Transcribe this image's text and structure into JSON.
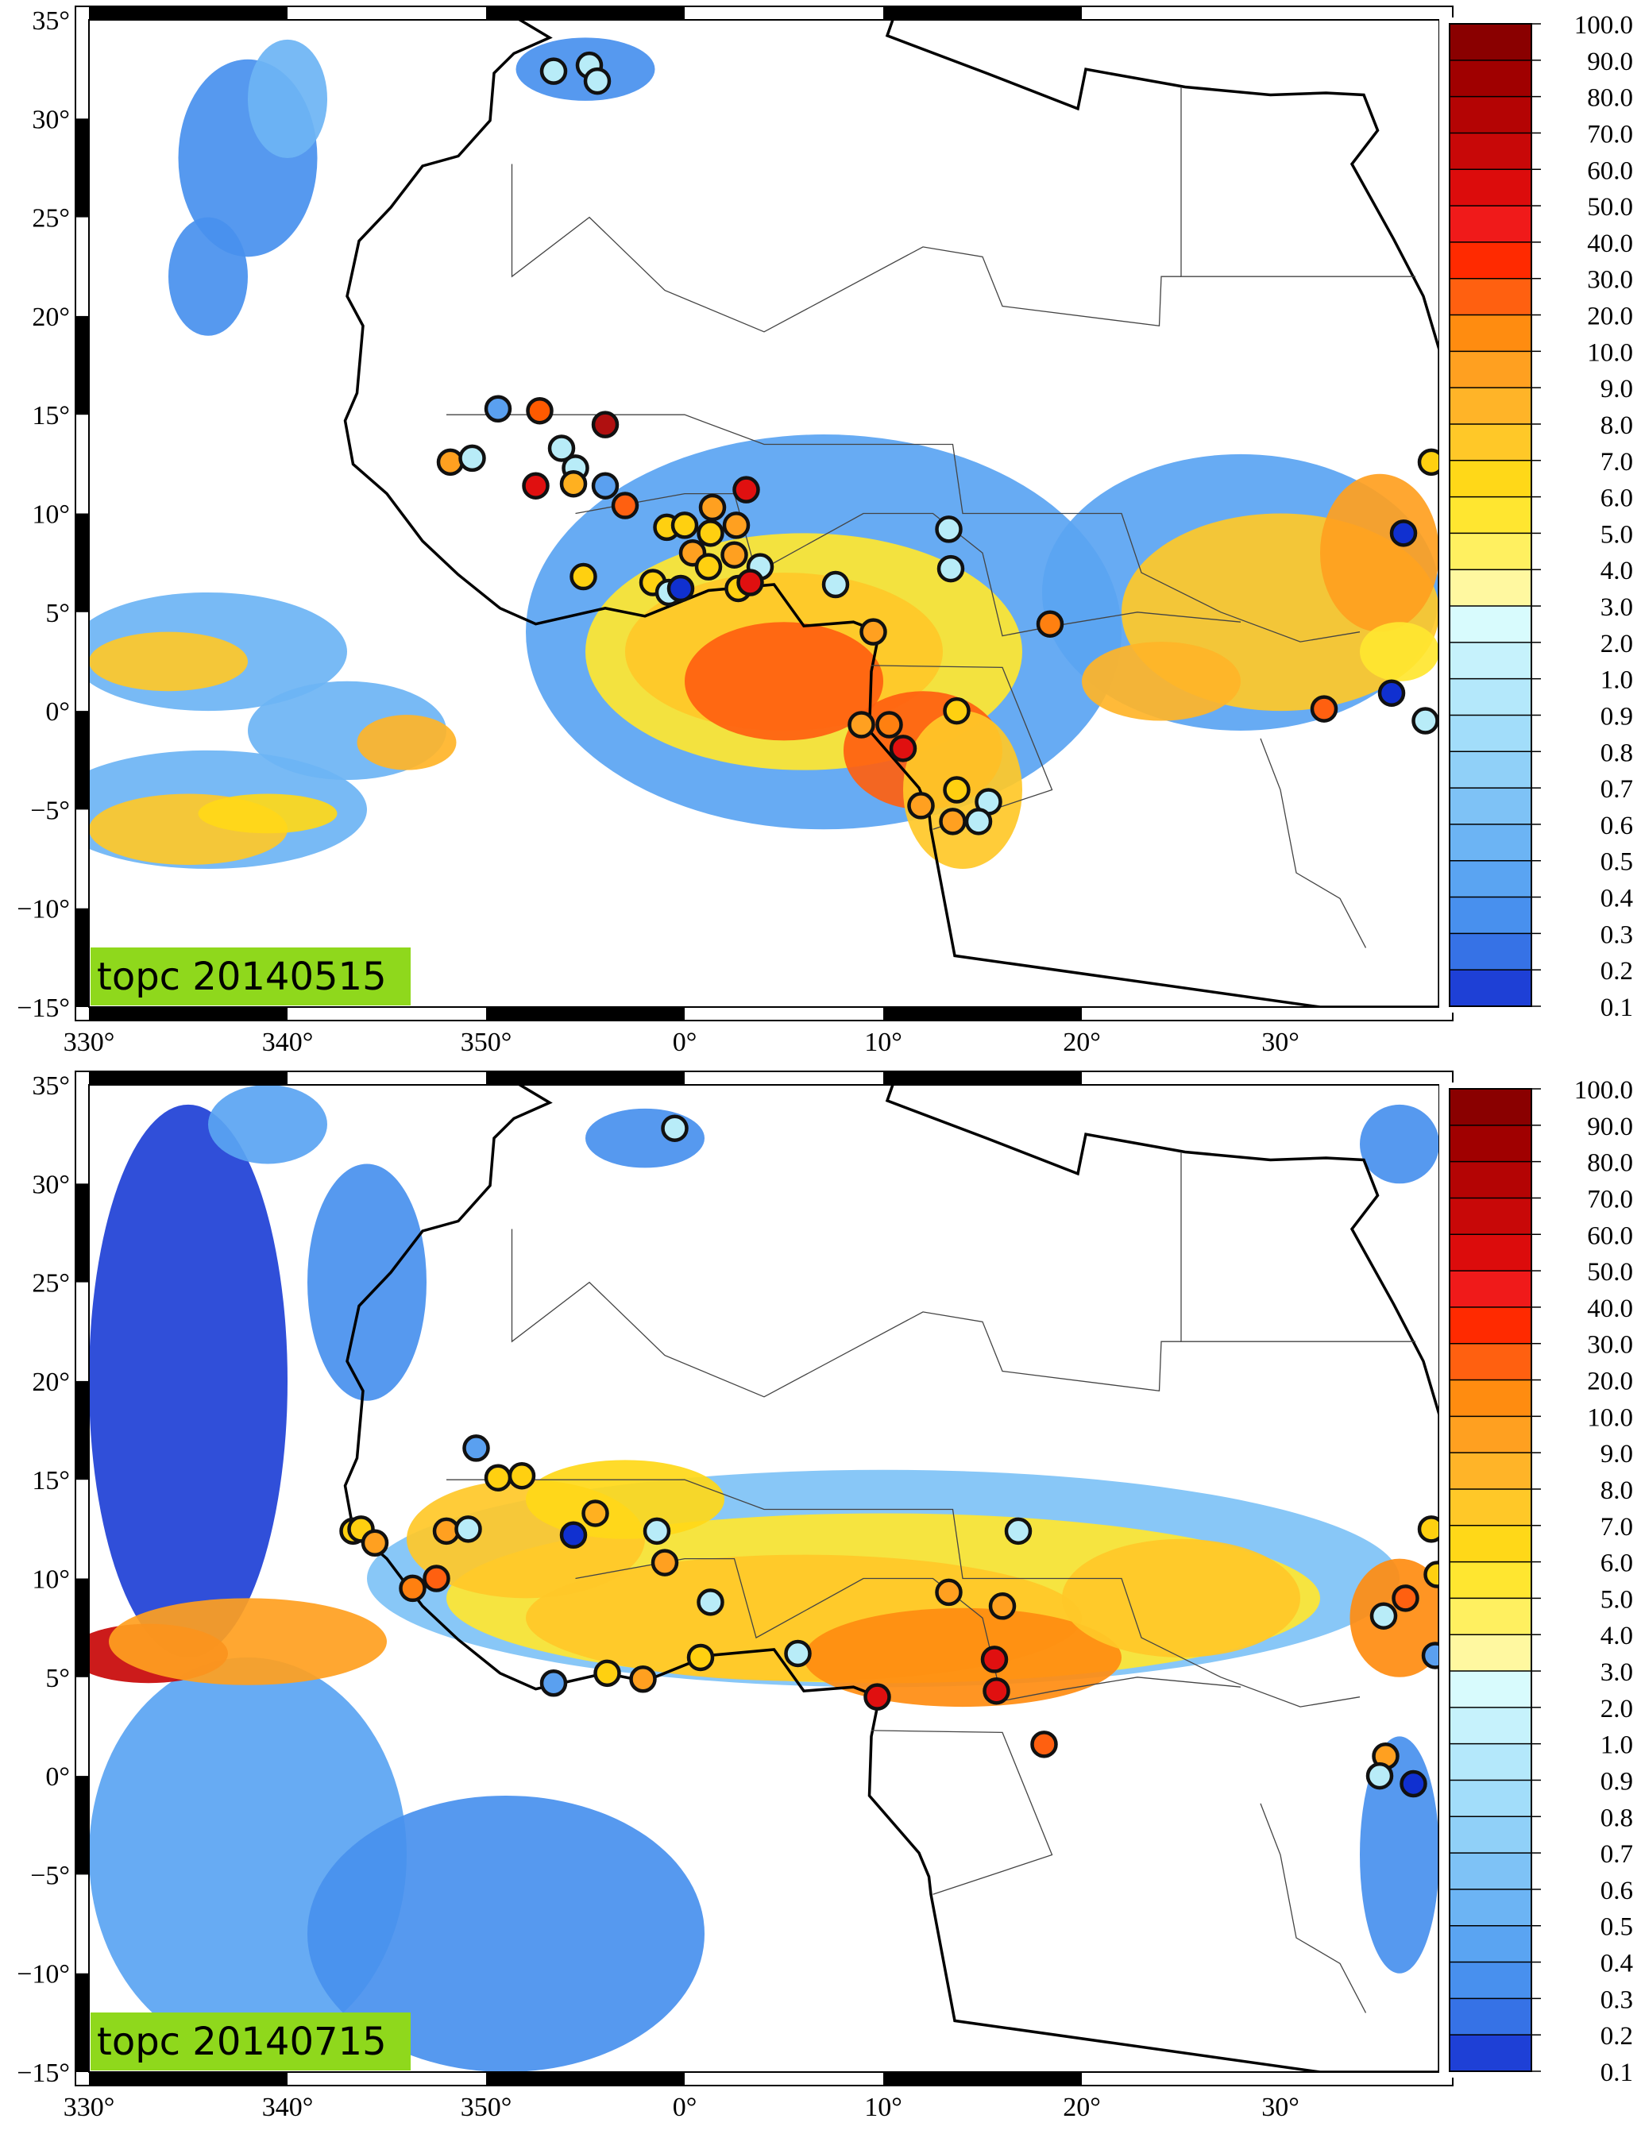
{
  "panels": [
    {
      "id": "top",
      "label": "topc 20140515",
      "y_ticks": [
        "35°",
        "30°",
        "25°",
        "20°",
        "15°",
        "10°",
        "5°",
        "0°",
        "−5°",
        "−10°",
        "−15°"
      ],
      "x_ticks": [
        "330°",
        "340°",
        "350°",
        "0°",
        "10°",
        "20°",
        "30°"
      ],
      "stations": [
        {
          "lon": -6.6,
          "lat": 32.4,
          "c": "#b8ecf8"
        },
        {
          "lon": -4.8,
          "lat": 32.7,
          "c": "#b8ecf8"
        },
        {
          "lon": -4.4,
          "lat": 31.9,
          "c": "#b8ecf8"
        },
        {
          "lon": -9.4,
          "lat": 15.3,
          "c": "#5aa0f0"
        },
        {
          "lon": -7.3,
          "lat": 15.2,
          "c": "#ff5a00"
        },
        {
          "lon": -4.0,
          "lat": 14.5,
          "c": "#b01010"
        },
        {
          "lon": -11.8,
          "lat": 12.6,
          "c": "#ffa020"
        },
        {
          "lon": -10.7,
          "lat": 12.8,
          "c": "#b8ecf8"
        },
        {
          "lon": -6.2,
          "lat": 13.3,
          "c": "#b8ecf8"
        },
        {
          "lon": -5.5,
          "lat": 12.3,
          "c": "#b8ecf8"
        },
        {
          "lon": -7.5,
          "lat": 11.4,
          "c": "#e01010"
        },
        {
          "lon": -5.6,
          "lat": 11.5,
          "c": "#ffb020"
        },
        {
          "lon": -4.0,
          "lat": 11.4,
          "c": "#5aa0f0"
        },
        {
          "lon": -3.0,
          "lat": 10.4,
          "c": "#ff6010"
        },
        {
          "lon": -5.1,
          "lat": 6.8,
          "c": "#ffd010"
        },
        {
          "lon": -0.9,
          "lat": 9.3,
          "c": "#ffd010"
        },
        {
          "lon": 0.0,
          "lat": 9.4,
          "c": "#ffd010"
        },
        {
          "lon": 1.3,
          "lat": 9.0,
          "c": "#ffd010"
        },
        {
          "lon": 1.4,
          "lat": 10.3,
          "c": "#ffa020"
        },
        {
          "lon": 2.6,
          "lat": 9.4,
          "c": "#ffa020"
        },
        {
          "lon": 3.1,
          "lat": 11.2,
          "c": "#e01010"
        },
        {
          "lon": 0.4,
          "lat": 8.0,
          "c": "#ffa020"
        },
        {
          "lon": 1.2,
          "lat": 7.3,
          "c": "#ffd010"
        },
        {
          "lon": 2.5,
          "lat": 7.9,
          "c": "#ffa020"
        },
        {
          "lon": 3.8,
          "lat": 7.3,
          "c": "#b8ecf8"
        },
        {
          "lon": -1.6,
          "lat": 6.5,
          "c": "#ffd010"
        },
        {
          "lon": -0.8,
          "lat": 6.0,
          "c": "#b8ecf8"
        },
        {
          "lon": -0.2,
          "lat": 6.2,
          "c": "#1030d0"
        },
        {
          "lon": 2.7,
          "lat": 6.2,
          "c": "#ffd010"
        },
        {
          "lon": 3.3,
          "lat": 6.5,
          "c": "#e01010"
        },
        {
          "lon": 7.6,
          "lat": 6.4,
          "c": "#b8ecf8"
        },
        {
          "lon": 13.3,
          "lat": 9.2,
          "c": "#b8ecf8"
        },
        {
          "lon": 13.4,
          "lat": 7.2,
          "c": "#b8ecf8"
        },
        {
          "lon": 9.5,
          "lat": 4.0,
          "c": "#ffa020"
        },
        {
          "lon": 18.4,
          "lat": 4.4,
          "c": "#ff8010"
        },
        {
          "lon": 13.7,
          "lat": 0.0,
          "c": "#ffd010"
        },
        {
          "lon": 8.9,
          "lat": -0.7,
          "c": "#ffa020"
        },
        {
          "lon": 10.3,
          "lat": -0.7,
          "c": "#ff8010"
        },
        {
          "lon": 11.0,
          "lat": -1.9,
          "c": "#e01010"
        },
        {
          "lon": 11.9,
          "lat": -4.8,
          "c": "#ffa020"
        },
        {
          "lon": 13.7,
          "lat": -4.0,
          "c": "#ffd010"
        },
        {
          "lon": 13.5,
          "lat": -5.6,
          "c": "#ffa020"
        },
        {
          "lon": 15.3,
          "lat": -4.6,
          "c": "#b8ecf8"
        },
        {
          "lon": 14.8,
          "lat": -5.6,
          "c": "#b8ecf8"
        },
        {
          "lon": 37.6,
          "lat": 12.6,
          "c": "#ffd010"
        },
        {
          "lon": 36.2,
          "lat": 9.0,
          "c": "#1030d0"
        },
        {
          "lon": 32.2,
          "lat": 0.1,
          "c": "#ff6010"
        },
        {
          "lon": 35.6,
          "lat": 0.9,
          "c": "#1030d0"
        },
        {
          "lon": 37.3,
          "lat": -0.5,
          "c": "#b8ecf8"
        }
      ]
    },
    {
      "id": "bottom",
      "label": "topc 20140715",
      "y_ticks": [
        "35°",
        "30°",
        "25°",
        "20°",
        "15°",
        "10°",
        "5°",
        "0°",
        "−5°",
        "−10°",
        "−15°"
      ],
      "x_ticks": [
        "330°",
        "340°",
        "350°",
        "0°",
        "10°",
        "20°",
        "30°"
      ],
      "stations": [
        {
          "lon": -0.5,
          "lat": 32.8,
          "c": "#b8ecf8"
        },
        {
          "lon": -10.5,
          "lat": 16.6,
          "c": "#5aa0f0"
        },
        {
          "lon": -9.4,
          "lat": 15.1,
          "c": "#ffd010"
        },
        {
          "lon": -8.2,
          "lat": 15.2,
          "c": "#ffd010"
        },
        {
          "lon": -16.7,
          "lat": 12.4,
          "c": "#ffd010"
        },
        {
          "lon": -16.3,
          "lat": 12.5,
          "c": "#ffd010"
        },
        {
          "lon": -15.6,
          "lat": 11.8,
          "c": "#ffa020"
        },
        {
          "lon": -12.0,
          "lat": 12.4,
          "c": "#ffa020"
        },
        {
          "lon": -10.9,
          "lat": 12.5,
          "c": "#b8ecf8"
        },
        {
          "lon": -5.6,
          "lat": 12.2,
          "c": "#1030d0"
        },
        {
          "lon": -4.5,
          "lat": 13.3,
          "c": "#ffb020"
        },
        {
          "lon": -13.7,
          "lat": 9.5,
          "c": "#ff8010"
        },
        {
          "lon": -12.5,
          "lat": 10.0,
          "c": "#ff6010"
        },
        {
          "lon": -1.4,
          "lat": 12.4,
          "c": "#b8ecf8"
        },
        {
          "lon": -1.0,
          "lat": 10.8,
          "c": "#ffa020"
        },
        {
          "lon": 1.3,
          "lat": 8.8,
          "c": "#b8ecf8"
        },
        {
          "lon": 0.8,
          "lat": 6.0,
          "c": "#ffd010"
        },
        {
          "lon": -3.9,
          "lat": 5.2,
          "c": "#ffd010"
        },
        {
          "lon": -2.1,
          "lat": 4.9,
          "c": "#ffa020"
        },
        {
          "lon": -6.6,
          "lat": 4.7,
          "c": "#5aa0f0"
        },
        {
          "lon": 5.7,
          "lat": 6.2,
          "c": "#b8ecf8"
        },
        {
          "lon": 9.7,
          "lat": 4.0,
          "c": "#e01010"
        },
        {
          "lon": 13.3,
          "lat": 9.3,
          "c": "#ffa020"
        },
        {
          "lon": 16.8,
          "lat": 12.4,
          "c": "#b8ecf8"
        },
        {
          "lon": 16.0,
          "lat": 8.6,
          "c": "#ffa020"
        },
        {
          "lon": 15.6,
          "lat": 5.9,
          "c": "#e01010"
        },
        {
          "lon": 15.7,
          "lat": 4.3,
          "c": "#e01010"
        },
        {
          "lon": 18.1,
          "lat": 1.6,
          "c": "#ff6010"
        },
        {
          "lon": 35.3,
          "lat": 1.0,
          "c": "#ffa020"
        },
        {
          "lon": 35.0,
          "lat": 0.0,
          "c": "#b8ecf8"
        },
        {
          "lon": 36.7,
          "lat": -0.4,
          "c": "#1030d0"
        },
        {
          "lon": 37.6,
          "lat": 12.5,
          "c": "#ffd010"
        },
        {
          "lon": 37.9,
          "lat": 10.2,
          "c": "#ffd010"
        },
        {
          "lon": 36.3,
          "lat": 9.0,
          "c": "#ff6010"
        },
        {
          "lon": 35.2,
          "lat": 8.1,
          "c": "#b8ecf8"
        },
        {
          "lon": 37.8,
          "lat": 6.1,
          "c": "#5aa0f0"
        }
      ]
    }
  ],
  "colorbar": {
    "labels": [
      "100.0",
      "90.0",
      "80.0",
      "70.0",
      "60.0",
      "50.0",
      "40.0",
      "30.0",
      "20.0",
      "10.0",
      "9.0",
      "8.0",
      "7.0",
      "6.0",
      "5.0",
      "4.0",
      "3.0",
      "2.0",
      "1.0",
      "0.9",
      "0.8",
      "0.7",
      "0.6",
      "0.5",
      "0.4",
      "0.3",
      "0.2",
      "0.1"
    ],
    "colors": [
      "#8a0000",
      "#a00000",
      "#b40404",
      "#c80808",
      "#dc0c0c",
      "#f01a1a",
      "#ff2a00",
      "#ff6010",
      "#ff8c10",
      "#ffa020",
      "#ffb428",
      "#ffc828",
      "#ffd818",
      "#ffe630",
      "#fff060",
      "#fff8a0",
      "#d8fbfd",
      "#c6f2fc",
      "#b4e8fb",
      "#a2ddfa",
      "#90d0f8",
      "#7ec2f6",
      "#6cb4f4",
      "#5aa4f2",
      "#4890ee",
      "#3672e6",
      "#1e40d6"
    ]
  },
  "colors": {
    "label_bg": "#8fd81c",
    "station_outline": "#111111"
  }
}
